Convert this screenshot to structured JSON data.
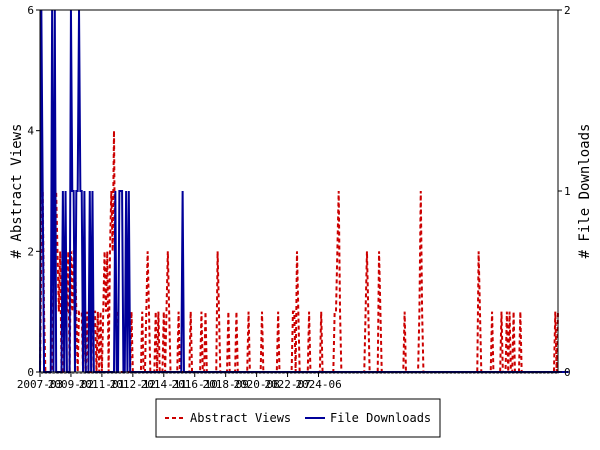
{
  "chart_data": {
    "type": "line",
    "x_start": "2007-03",
    "x_ticks": [
      "2007-03",
      "2009-02",
      "2011-01",
      "2012-12",
      "2014-11",
      "2016-10",
      "2018-09",
      "2020-08",
      "2022-07",
      "2024-06"
    ],
    "ylabel_left": "# Abstract Views",
    "ylabel_right": "# File Downloads",
    "ylim_left": [
      0,
      6
    ],
    "ylim_right": [
      0,
      2
    ],
    "yticks_left": [
      "0",
      "2",
      "4",
      "6"
    ],
    "yticks_right": [
      "0",
      "1",
      "2"
    ],
    "legend_position": "bottom",
    "series": [
      {
        "name": "Abstract Views",
        "axis": "left",
        "color": "#cc0000",
        "style": "dashed",
        "values": [
          0,
          2,
          3,
          1,
          0,
          0,
          0,
          0,
          0,
          0,
          2,
          3,
          3,
          2,
          1,
          2,
          0,
          0,
          2,
          2,
          1,
          2,
          0,
          2,
          1,
          2,
          2,
          1,
          0,
          1,
          1,
          1,
          0,
          1,
          0,
          1,
          0,
          0,
          0,
          1,
          1,
          1,
          0,
          1,
          0,
          1,
          0,
          1,
          2,
          1,
          2,
          0,
          2,
          3,
          2,
          4,
          1,
          1,
          0,
          0,
          0,
          0,
          0,
          0,
          0,
          0,
          0,
          0,
          1,
          0,
          0,
          0,
          0,
          0,
          0,
          0,
          1,
          0,
          0,
          1,
          2,
          1,
          0,
          0,
          0,
          0,
          1,
          0,
          1,
          0,
          0,
          0,
          1,
          0,
          1,
          2,
          1,
          0,
          0,
          0,
          0,
          0,
          0,
          1,
          0,
          0,
          0,
          0,
          0,
          0,
          0,
          0,
          1,
          0,
          0,
          0,
          0,
          0,
          0,
          0,
          1,
          0,
          0,
          1,
          0,
          0,
          0,
          0,
          0,
          0,
          0,
          0,
          2,
          1,
          0,
          0,
          0,
          0,
          0,
          0,
          1,
          0,
          0,
          0,
          0,
          0,
          1,
          0,
          0,
          0,
          0,
          0,
          0,
          0,
          0,
          1,
          0,
          0,
          0,
          0,
          0,
          0,
          0,
          0,
          0,
          1,
          0,
          0,
          0,
          0,
          0,
          0,
          0,
          0,
          0,
          0,
          0,
          1,
          0,
          0,
          0,
          0,
          0,
          0,
          0,
          0,
          0,
          0,
          1,
          1,
          0,
          2,
          1,
          0,
          0,
          0,
          0,
          0,
          0,
          0,
          1,
          0,
          0,
          0,
          0,
          0,
          0,
          0,
          0,
          1,
          0,
          0,
          0,
          0,
          0,
          0,
          0,
          0,
          0,
          1,
          1,
          2,
          3,
          1,
          0,
          0,
          0,
          0,
          0,
          0,
          0,
          0,
          0,
          0,
          0,
          0,
          0,
          0,
          0,
          0,
          0,
          0,
          1,
          2,
          1,
          0,
          0,
          0,
          0,
          0,
          0,
          0,
          2,
          1,
          0,
          0,
          0,
          0,
          0,
          0,
          0,
          0,
          0,
          0,
          0,
          0,
          0,
          0,
          0,
          0,
          0,
          1,
          0,
          0,
          0,
          0,
          0,
          0,
          0,
          0,
          0,
          0,
          1,
          3,
          1,
          0,
          0,
          0,
          0,
          0,
          0,
          0,
          0,
          0,
          0,
          0,
          0,
          0,
          0,
          0,
          0,
          0,
          0,
          0,
          0,
          0,
          0,
          0,
          0,
          0,
          0,
          0,
          0,
          0,
          0,
          0,
          0,
          0,
          0,
          0,
          0,
          0,
          0,
          0,
          0,
          0,
          2,
          1,
          0,
          0,
          0,
          0,
          0,
          0,
          0,
          0,
          1,
          0,
          0,
          0,
          0,
          0,
          0,
          1,
          0,
          0,
          0,
          1,
          0,
          1,
          0,
          0,
          1,
          0,
          0,
          0,
          0,
          1,
          0,
          0,
          0,
          0,
          0,
          0,
          0,
          0,
          0,
          0,
          0,
          0,
          0,
          0,
          0,
          0,
          0,
          0,
          0,
          0,
          0,
          0,
          0,
          0,
          0,
          1,
          0,
          1
        ]
      },
      {
        "name": "File Downloads",
        "axis": "right",
        "color": "#000099",
        "style": "solid",
        "values": [
          0,
          2,
          1,
          0,
          0,
          0,
          0,
          0,
          0,
          2,
          0,
          2,
          0,
          0,
          0,
          0,
          0,
          1,
          0,
          1,
          0,
          0,
          0,
          2,
          1,
          1,
          0,
          1,
          1,
          2,
          1,
          1,
          0,
          1,
          0,
          0,
          0,
          1,
          0,
          1,
          0,
          0,
          0,
          0,
          0,
          0,
          0,
          0,
          0,
          0,
          0,
          0,
          0,
          0,
          0,
          0,
          1,
          0,
          0,
          1,
          1,
          1,
          0,
          0,
          1,
          0,
          1,
          0,
          0,
          0,
          0,
          0,
          0,
          0,
          0,
          0,
          0,
          0,
          0,
          0,
          0,
          0,
          0,
          0,
          0,
          0,
          0,
          0,
          0,
          0,
          0,
          0,
          0,
          0,
          0,
          0,
          0,
          0,
          0,
          0,
          0,
          0,
          0,
          0,
          0,
          0,
          1,
          0,
          0,
          0,
          0,
          0,
          0,
          0,
          0,
          0,
          0,
          0,
          0,
          0,
          0,
          0,
          0,
          0,
          0,
          0,
          0,
          0,
          0,
          0,
          0,
          0,
          0,
          0,
          0,
          0,
          0,
          0,
          0,
          0,
          0,
          0,
          0,
          0,
          0,
          0,
          0,
          0,
          0,
          0,
          0,
          0,
          0,
          0,
          0,
          0,
          0,
          0,
          0,
          0,
          0,
          0,
          0,
          0,
          0,
          0,
          0,
          0,
          0,
          0,
          0,
          0,
          0,
          0,
          0,
          0,
          0,
          0,
          0,
          0,
          0,
          0,
          0,
          0,
          0,
          0,
          0,
          0,
          0,
          0,
          0,
          0,
          0,
          0,
          0,
          0,
          0,
          0,
          0,
          0,
          0,
          0,
          0,
          0,
          0,
          0,
          0,
          0,
          0,
          0,
          0,
          0,
          0,
          0,
          0,
          0,
          0,
          0,
          0,
          0,
          0,
          0,
          0,
          0,
          0,
          0,
          0,
          0,
          0,
          0,
          0,
          0,
          0,
          0,
          0,
          0,
          0,
          0,
          0,
          0,
          0,
          0,
          0,
          0,
          0,
          0,
          0,
          0,
          0,
          0,
          0,
          0,
          0,
          0,
          0,
          0,
          0,
          0,
          0,
          0,
          0,
          0,
          0,
          0,
          0,
          0,
          0,
          0,
          0,
          0,
          0,
          0,
          0,
          0,
          0,
          0,
          0,
          0,
          0,
          0,
          0,
          0,
          0,
          0,
          0,
          0,
          0,
          0,
          0,
          0,
          0,
          0,
          0,
          0,
          0,
          0,
          0,
          0,
          0,
          0,
          0,
          0,
          0,
          0,
          0,
          0,
          0,
          0,
          0,
          0,
          0,
          0,
          0,
          0,
          0,
          0,
          0,
          0,
          0,
          0,
          0,
          0,
          0,
          0,
          0,
          0,
          0,
          0,
          0,
          0,
          0,
          0,
          0,
          0,
          0,
          0,
          0,
          0,
          0,
          0,
          0,
          0,
          0,
          0,
          0,
          0,
          0,
          0,
          0,
          0,
          0,
          0,
          0,
          0,
          0,
          0,
          0,
          0,
          0,
          0,
          0,
          0,
          0,
          0,
          0,
          0,
          0,
          0,
          0,
          0,
          0,
          0,
          0,
          0,
          0,
          0,
          0,
          0,
          0,
          0,
          0,
          0,
          0,
          0,
          0,
          0,
          0,
          0,
          0,
          0,
          0,
          0,
          0,
          0
        ]
      }
    ]
  }
}
